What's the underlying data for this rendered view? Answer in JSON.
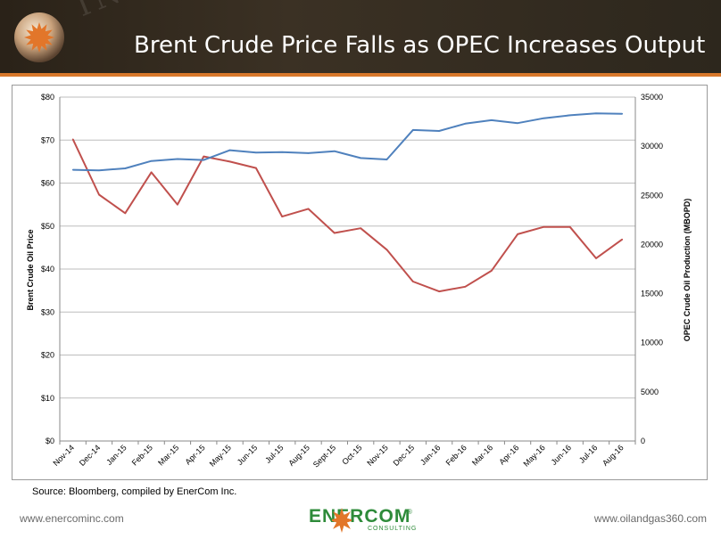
{
  "slide": {
    "title": "Brent Crude Price Falls as OPEC Increases Output",
    "watermark": "INDUSTRY",
    "source": "Source: Bloomberg, compiled by EnerCom Inc.",
    "footer_left": "www.enercominc.com",
    "footer_right": "www.oilandgas360.com",
    "brand_name": "ENERCOM",
    "brand_sub": "CONSULTING",
    "brand_mark": "®"
  },
  "colors": {
    "price_line": "#c0504d",
    "production_line": "#4f81bd",
    "header_accent": "#d8782b",
    "brand_green": "#2e8b3a"
  },
  "chart_data": {
    "type": "line",
    "categories": [
      "Nov-14",
      "Dec-14",
      "Jan-15",
      "Feb-15",
      "Mar-15",
      "Apr-15",
      "May-15",
      "Jun-15",
      "Jul-15",
      "Aug-15",
      "Sept-15",
      "Oct-15",
      "Nov-15",
      "Dec-15",
      "Jan-16",
      "Feb-16",
      "Mar-16",
      "Apr-16",
      "May-16",
      "Jun-16",
      "Jul-16",
      "Aug-16"
    ],
    "ylabel": "Brent Crude Oil Price",
    "y2label": "OPEC Crude Oil Production (MBOPD)",
    "ylim": [
      0,
      80
    ],
    "y2lim": [
      0,
      35000
    ],
    "yticks": [
      "$0",
      "$10",
      "$20",
      "$30",
      "$40",
      "$50",
      "$60",
      "$70",
      "$80"
    ],
    "y2ticks": [
      "0",
      "5000",
      "10000",
      "15000",
      "20000",
      "25000",
      "30000",
      "35000"
    ],
    "grid": true,
    "legend": "none",
    "series": [
      {
        "axis": "left",
        "values": [
          70.2,
          57.3,
          53.0,
          62.5,
          55.0,
          66.2,
          65.0,
          63.5,
          52.2,
          54.0,
          48.4,
          49.5,
          44.5,
          37.1,
          34.8,
          35.9,
          39.6,
          48.1,
          49.8,
          49.8,
          42.5,
          46.9
        ]
      },
      {
        "axis": "right",
        "values": [
          27600,
          27550,
          27750,
          28500,
          28700,
          28600,
          29600,
          29350,
          29400,
          29300,
          29500,
          28800,
          28650,
          31650,
          31550,
          32300,
          32650,
          32350,
          32850,
          33150,
          33350,
          33300
        ]
      }
    ]
  }
}
